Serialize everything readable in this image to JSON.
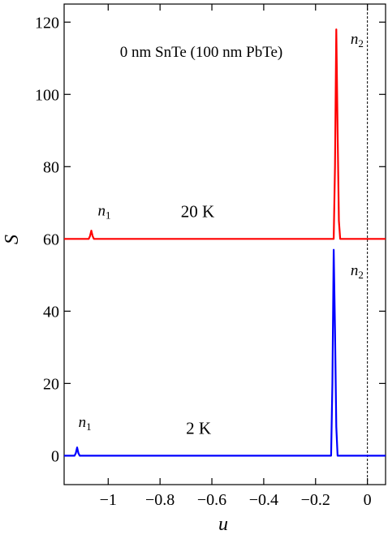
{
  "chart_data": {
    "type": "line",
    "title": "0 nm SnTe (100 nm PbTe)",
    "xlabel": "u",
    "ylabel": "S",
    "xlim": [
      -1.17,
      0.07
    ],
    "ylim": [
      -8,
      125
    ],
    "xticks": [
      -1,
      -0.8,
      -0.6,
      -0.4,
      -0.2,
      0
    ],
    "xtick_labels": [
      "−1",
      "−0.8",
      "−0.6",
      "−0.4",
      "−0.2",
      "0"
    ],
    "yticks": [
      0,
      20,
      40,
      60,
      80,
      100,
      120
    ],
    "ytick_labels": [
      "0",
      "20",
      "40",
      "60",
      "80",
      "100",
      "120"
    ],
    "vline_x": 0,
    "grid": false,
    "series": [
      {
        "name": "20 K",
        "color": "#ff0000",
        "x": [
          -1.17,
          -1.075,
          -1.07,
          -1.065,
          -1.06,
          -1.055,
          -1.05,
          -0.14,
          -0.13,
          -0.125,
          -0.12,
          -0.115,
          -0.11,
          -0.105,
          -0.1,
          0.07
        ],
        "y": [
          60,
          60,
          60.8,
          62.3,
          60.8,
          60,
          60,
          60,
          60,
          80,
          118,
          90,
          65,
          60,
          60,
          60
        ]
      },
      {
        "name": "2 K",
        "color": "#0000ff",
        "x": [
          -1.17,
          -1.13,
          -1.125,
          -1.12,
          -1.115,
          -1.11,
          -1.105,
          -0.15,
          -0.14,
          -0.135,
          -0.13,
          -0.125,
          -0.12,
          -0.115,
          -0.11,
          0.07
        ],
        "y": [
          0,
          0,
          0.7,
          2.3,
          0.7,
          0,
          0,
          0,
          0,
          20,
          57,
          35,
          8,
          0,
          0,
          0
        ]
      }
    ],
    "annotations": [
      {
        "id": "n1-top",
        "base": "n",
        "sub": "1",
        "x": -1.04,
        "y": 66.5
      },
      {
        "id": "n2-top",
        "base": "n",
        "sub": "2",
        "x": -0.065,
        "y": 114
      },
      {
        "id": "label-20K",
        "text": "20 K",
        "x": -0.72,
        "y": 66
      },
      {
        "id": "n2-bottom",
        "base": "n",
        "sub": "2",
        "x": -0.065,
        "y": 50
      },
      {
        "id": "n1-bottom",
        "base": "n",
        "sub": "1",
        "x": -1.115,
        "y": 8
      },
      {
        "id": "label-2K",
        "text": "2 K",
        "x": -0.7,
        "y": 6
      }
    ]
  }
}
